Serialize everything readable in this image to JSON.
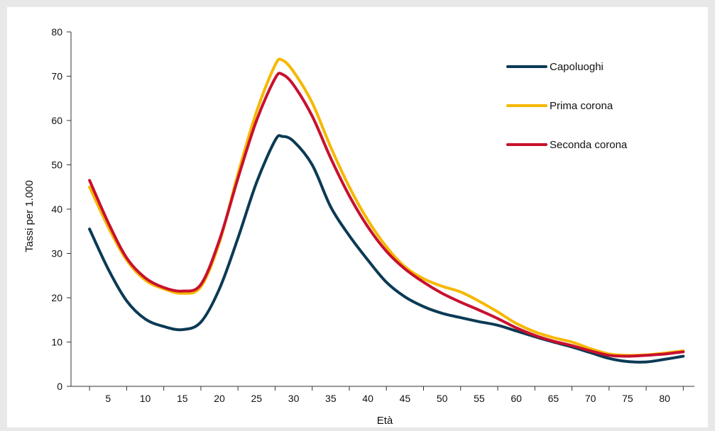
{
  "chart_data": {
    "type": "line",
    "title": "",
    "xlabel": "Età",
    "ylabel": "Tassi per 1.000",
    "ylim": [
      0,
      80
    ],
    "yticks": [
      0,
      10,
      20,
      30,
      40,
      50,
      60,
      70,
      80
    ],
    "xlim": [
      0,
      84
    ],
    "xticks": [
      5,
      10,
      15,
      20,
      25,
      30,
      35,
      40,
      45,
      50,
      55,
      60,
      65,
      70,
      75,
      80
    ],
    "grid": false,
    "legend_position": "top-right",
    "series": [
      {
        "name": "Capoluoghi",
        "color": "#0b3a54",
        "x": [
          2.5,
          5,
          7.5,
          10,
          12.5,
          15,
          17.5,
          20,
          22.5,
          25,
          27.5,
          28.5,
          30,
          32.5,
          35,
          37.5,
          40,
          42.5,
          45,
          47.5,
          50,
          52.5,
          55,
          57.5,
          60,
          62.5,
          65,
          67.5,
          70,
          72.5,
          75,
          77.5,
          80,
          82.5
        ],
        "values": [
          35.5,
          26.5,
          19.3,
          15.2,
          13.5,
          12.8,
          14.5,
          22,
          33.5,
          46,
          55.5,
          56.4,
          55.3,
          50,
          40.5,
          34,
          28.5,
          23.5,
          20.2,
          18,
          16.5,
          15.5,
          14.6,
          13.8,
          12.5,
          11.2,
          10,
          8.9,
          7.6,
          6.3,
          5.6,
          5.5,
          6.1,
          6.8
        ]
      },
      {
        "name": "Prima corona",
        "color": "#f6b800",
        "x": [
          2.5,
          5,
          7.5,
          10,
          12.5,
          15,
          17.5,
          20,
          22.5,
          25,
          27.5,
          28.5,
          30,
          32.5,
          35,
          37.5,
          40,
          42.5,
          45,
          47.5,
          50,
          52.5,
          55,
          57.5,
          60,
          62.5,
          65,
          67.5,
          70,
          72.5,
          75,
          77.5,
          80,
          82.5
        ],
        "values": [
          45,
          36,
          28.5,
          24,
          22,
          21,
          22.5,
          32.5,
          48,
          62,
          72.5,
          73.6,
          71,
          64,
          54,
          45,
          37.5,
          31.5,
          27,
          24.3,
          22.6,
          21.3,
          19.2,
          16.8,
          14.2,
          12.3,
          11,
          10,
          8.5,
          7.3,
          7,
          7.1,
          7.5,
          8
        ]
      },
      {
        "name": "Seconda corona",
        "color": "#c8102e",
        "x": [
          2.5,
          5,
          7.5,
          10,
          12.5,
          15,
          17.5,
          20,
          22.5,
          25,
          27.5,
          28.5,
          30,
          32.5,
          35,
          37.5,
          40,
          42.5,
          45,
          47.5,
          50,
          52.5,
          55,
          57.5,
          60,
          62.5,
          65,
          67.5,
          70,
          72.5,
          75,
          77.5,
          80,
          82.5
        ],
        "values": [
          46.5,
          37,
          29,
          24.5,
          22.3,
          21.5,
          23,
          33,
          47,
          60,
          69.5,
          70.4,
          68,
          61,
          51.5,
          43,
          36,
          30.5,
          26.5,
          23.5,
          21,
          19,
          17.2,
          15.3,
          13.2,
          11.5,
          10.2,
          9.2,
          8,
          7,
          6.8,
          7,
          7.3,
          7.8
        ]
      }
    ]
  }
}
